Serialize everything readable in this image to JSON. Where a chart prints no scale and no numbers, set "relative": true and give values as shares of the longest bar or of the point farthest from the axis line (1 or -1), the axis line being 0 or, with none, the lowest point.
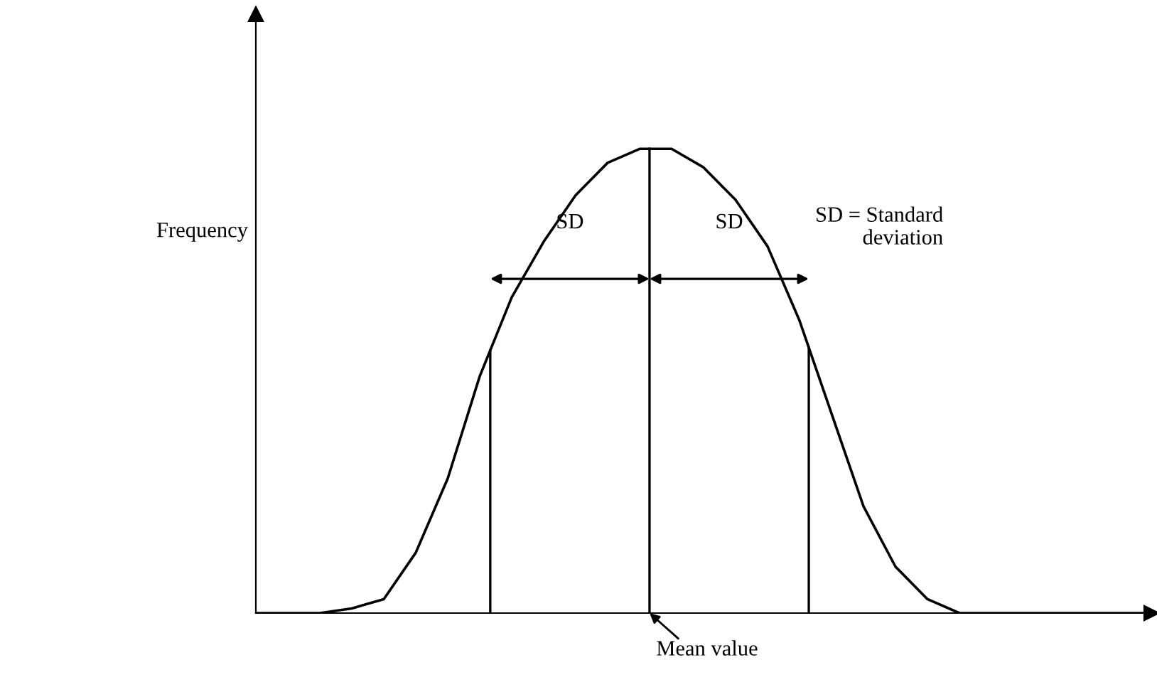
{
  "chart_data": {
    "type": "line",
    "relative": true,
    "ylabel": "Frequency",
    "color": "#000000",
    "marker": "none",
    "line_style": "solid",
    "grid": false,
    "legend": false,
    "categories": [
      null,
      null,
      null,
      null,
      null,
      null,
      null,
      null,
      null,
      null,
      null,
      null,
      null,
      null,
      null,
      null,
      null,
      null,
      null,
      null,
      null,
      null,
      null,
      null,
      null,
      null,
      null,
      null,
      null
    ],
    "values": [
      0,
      0,
      0,
      0.01,
      0.03,
      0.13,
      0.29,
      0.51,
      0.68,
      0.8,
      0.9,
      0.97,
      1,
      1,
      0.96,
      0.89,
      0.79,
      0.63,
      0.43,
      0.23,
      0.1,
      0.03,
      0,
      0,
      0,
      0,
      0,
      0,
      0
    ],
    "annotations": [
      "SD",
      "SD",
      "SD = Standard\ndeviation",
      "Mean value"
    ]
  }
}
